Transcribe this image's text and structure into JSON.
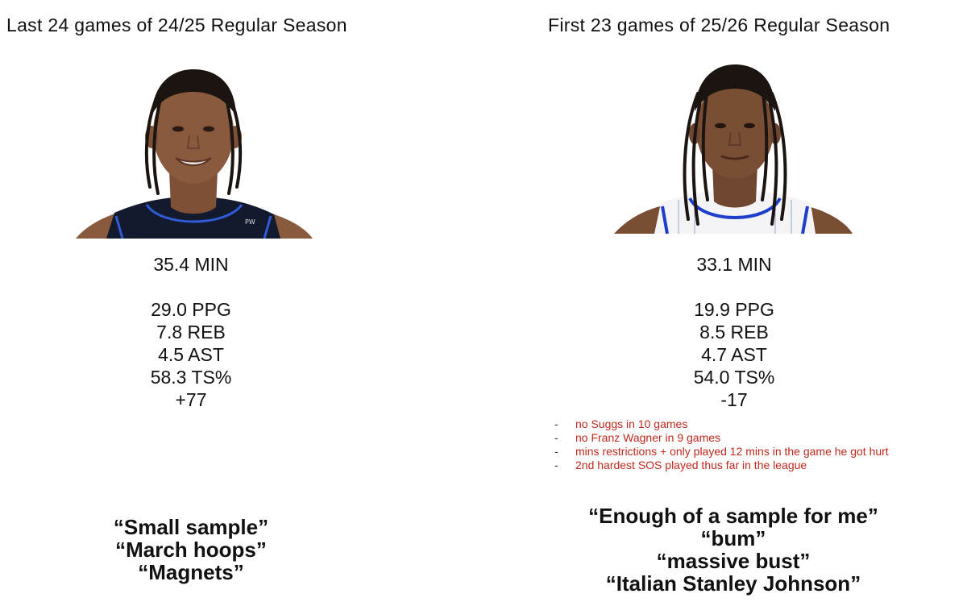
{
  "left": {
    "title": "Last 24 games of 24/25 Regular Season",
    "photo": {
      "icon": "player-headshot-dark-jersey",
      "jersey_color": "#141a2e",
      "jersey_trim": "#2e5bd8",
      "jersey_logo_text": "PW"
    },
    "stats": {
      "min": "35.4 MIN",
      "ppg": "29.0 PPG",
      "reb": "7.8 REB",
      "ast": "4.5 AST",
      "ts": "58.3 TS%",
      "plus_minus": "+77"
    },
    "quotes": [
      "“Small sample”",
      "“March hoops”",
      "“Magnets”"
    ]
  },
  "right": {
    "title": "First 23 games of 25/26 Regular Season",
    "photo": {
      "icon": "player-headshot-white-pinstripe-jersey",
      "jersey_color": "#f4f4f6",
      "jersey_trim": "#1d3fc9"
    },
    "stats": {
      "min": "33.1 MIN",
      "ppg": "19.9 PPG",
      "reb": "8.5 REB",
      "ast": "4.7 AST",
      "ts": "54.0 TS%",
      "plus_minus": "-17"
    },
    "notes_dash": "-",
    "notes": [
      "no Suggs in 10 games",
      "no Franz Wagner in 9 games",
      "mins restrictions + only played 12 mins in the game he got hurt",
      "2nd hardest SOS played thus far in the league"
    ],
    "quotes": [
      "“Enough of a sample for me”",
      "“bum”",
      "“massive bust”",
      "“Italian Stanley Johnson”"
    ]
  },
  "colors": {
    "text": "#111111",
    "note_red": "#c0291c",
    "skin": "#8a5a3e",
    "hair": "#1b1410"
  }
}
